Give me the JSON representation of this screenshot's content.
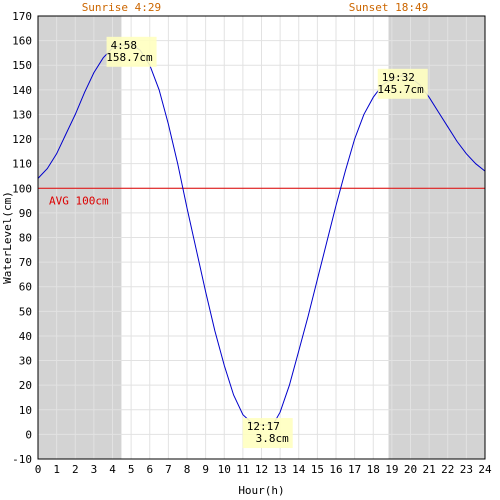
{
  "chart_data": {
    "type": "line",
    "xlabel": "Hour(h)",
    "ylabel": "WaterLevel(cm)",
    "xlim": [
      0,
      24
    ],
    "ylim": [
      -10,
      170
    ],
    "x_ticks": [
      "0",
      "1",
      "2",
      "3",
      "4",
      "5",
      "6",
      "7",
      "8",
      "9",
      "10",
      "11",
      "12",
      "13",
      "14",
      "15",
      "16",
      "17",
      "18",
      "19",
      "20",
      "21",
      "22",
      "23",
      "24"
    ],
    "y_ticks": [
      "-10",
      "0",
      "10",
      "20",
      "30",
      "40",
      "50",
      "60",
      "70",
      "80",
      "90",
      "100",
      "110",
      "120",
      "130",
      "140",
      "150",
      "160",
      "170"
    ],
    "grid": true,
    "sunrise_label": "Sunrise 4:29",
    "sunset_label": "Sunset 18:49",
    "sunrise_hour": 4.48,
    "sunset_hour": 18.82,
    "avg": {
      "label": "AVG 100cm",
      "value": 100,
      "color": "#dd0000"
    },
    "series": [
      {
        "color": "#0000cc",
        "x": [
          0,
          0.5,
          1,
          1.5,
          2,
          2.5,
          3,
          3.5,
          4,
          4.5,
          4.97,
          5.5,
          6,
          6.5,
          7,
          7.5,
          8,
          8.5,
          9,
          9.5,
          10,
          10.5,
          11,
          11.5,
          12,
          12.28,
          12.7,
          13,
          13.5,
          14,
          14.5,
          15,
          15.5,
          16,
          16.5,
          17,
          17.5,
          18,
          18.5,
          19,
          19.53,
          20,
          20.5,
          21,
          21.5,
          22,
          22.5,
          23,
          23.5,
          24
        ],
        "y": [
          104,
          108,
          114,
          122,
          130,
          139,
          147,
          153,
          157,
          158,
          158.7,
          156,
          150,
          140,
          126,
          110,
          92,
          75,
          58,
          42,
          28,
          16,
          8,
          4.5,
          3.8,
          3.8,
          5,
          9,
          20,
          34,
          48,
          63,
          78,
          93,
          107,
          120,
          130,
          137,
          142,
          144.5,
          145.7,
          145,
          142,
          137,
          131,
          125,
          119,
          114,
          110,
          107
        ]
      }
    ],
    "annotations": [
      {
        "time": "4:58",
        "value": "158.7cm",
        "x": 4.97,
        "y": 158.7
      },
      {
        "time": "12:17",
        "value": "3.8cm",
        "x": 12.28,
        "y": 3.8
      },
      {
        "time": "19:32",
        "value": "145.7cm",
        "x": 19.53,
        "y": 145.7
      }
    ]
  }
}
